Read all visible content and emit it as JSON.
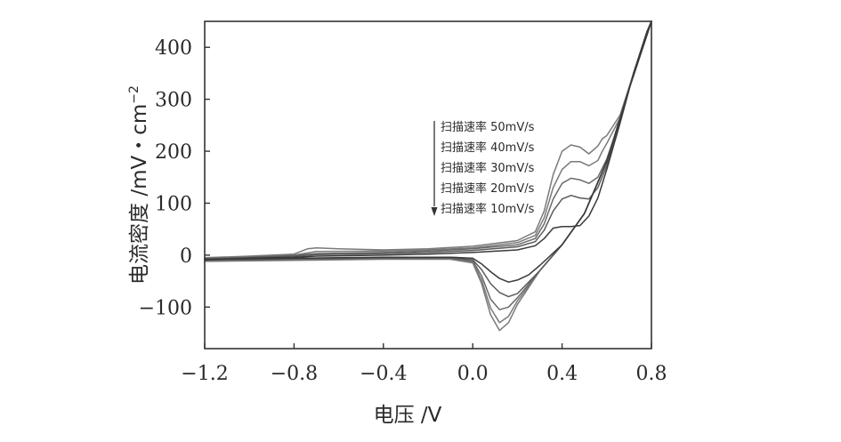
{
  "chart_data": {
    "type": "line",
    "title": "",
    "xlabel": "电压 /V",
    "ylabel": "电流密度 /mV・cm",
    "ylabel_sup": "−2",
    "xlim": [
      -1.2,
      0.8
    ],
    "ylim": [
      -180,
      450
    ],
    "grid": false,
    "x_ticks": [
      -1.2,
      -0.8,
      -0.4,
      0.0,
      0.4,
      0.8
    ],
    "x_tick_labels": [
      "−1.2",
      "−0.8",
      "−0.4",
      "0.0",
      "0.4",
      "0.8"
    ],
    "y_ticks": [
      -100,
      0,
      100,
      200,
      300,
      400
    ],
    "y_tick_labels": [
      "−100",
      "0",
      "100",
      "200",
      "300",
      "400"
    ],
    "legend": {
      "placement": "top-center",
      "arrow": "down",
      "entries": [
        "扫描速率 50mV/s",
        "扫描速率 40mV/s",
        "扫描速率 30mV/s",
        "扫描速率 20mV/s",
        "扫描速率 10mV/s"
      ]
    },
    "series": [
      {
        "name": "扫描速率 50mV/s",
        "color": "#7a7a7a",
        "forward": {
          "x": [
            -1.2,
            -1.0,
            -0.8,
            -0.74,
            -0.7,
            -0.6,
            -0.4,
            -0.2,
            0.0,
            0.2,
            0.28,
            0.32,
            0.36,
            0.4,
            0.44,
            0.48,
            0.52,
            0.56,
            0.58,
            0.6,
            0.66,
            0.72,
            0.78,
            0.8
          ],
          "y": [
            -5,
            -2,
            2,
            12,
            14,
            12,
            10,
            12,
            17,
            28,
            45,
            85,
            155,
            200,
            212,
            208,
            195,
            210,
            224,
            230,
            270,
            350,
            430,
            455
          ]
        },
        "reverse": {
          "x": [
            0.8,
            0.7,
            0.6,
            0.5,
            0.4,
            0.3,
            0.2,
            0.16,
            0.12,
            0.08,
            0.04,
            0.0,
            -0.1,
            -0.4,
            -0.8,
            -1.2
          ],
          "y": [
            455,
            320,
            180,
            80,
            20,
            -30,
            -95,
            -130,
            -145,
            -115,
            -55,
            -15,
            -8,
            -8,
            -10,
            -12
          ]
        }
      },
      {
        "name": "扫描速率 40mV/s",
        "color": "#7a7a7a",
        "forward": {
          "x": [
            -1.2,
            -1.0,
            -0.8,
            -0.7,
            -0.4,
            -0.2,
            0.0,
            0.2,
            0.28,
            0.32,
            0.36,
            0.4,
            0.44,
            0.48,
            0.52,
            0.56,
            0.58,
            0.6,
            0.66,
            0.72,
            0.78,
            0.8
          ],
          "y": [
            -6,
            -3,
            0,
            7,
            8,
            10,
            14,
            24,
            38,
            72,
            130,
            165,
            180,
            180,
            172,
            182,
            200,
            215,
            265,
            350,
            430,
            455
          ]
        },
        "reverse": {
          "x": [
            0.8,
            0.7,
            0.6,
            0.5,
            0.4,
            0.3,
            0.2,
            0.16,
            0.12,
            0.08,
            0.04,
            0.0,
            -0.1,
            -0.4,
            -0.8,
            -1.2
          ],
          "y": [
            455,
            320,
            180,
            80,
            20,
            -30,
            -88,
            -118,
            -130,
            -102,
            -48,
            -13,
            -7,
            -7,
            -9,
            -11
          ]
        }
      },
      {
        "name": "扫描速率 30mV/s",
        "color": "#6a6a6a",
        "forward": {
          "x": [
            -1.2,
            -1.0,
            -0.8,
            -0.7,
            -0.4,
            -0.2,
            0.0,
            0.2,
            0.28,
            0.32,
            0.36,
            0.4,
            0.44,
            0.48,
            0.52,
            0.56,
            0.6,
            0.66,
            0.72,
            0.78,
            0.8
          ],
          "y": [
            -7,
            -4,
            -1,
            3,
            5,
            8,
            12,
            20,
            32,
            60,
            108,
            138,
            148,
            145,
            138,
            150,
            185,
            260,
            350,
            430,
            455
          ]
        },
        "reverse": {
          "x": [
            0.8,
            0.7,
            0.6,
            0.5,
            0.4,
            0.3,
            0.2,
            0.16,
            0.12,
            0.08,
            0.04,
            0.0,
            -0.1,
            -0.4,
            -0.8,
            -1.2
          ],
          "y": [
            455,
            320,
            180,
            80,
            20,
            -30,
            -82,
            -100,
            -105,
            -85,
            -40,
            -11,
            -6,
            -6,
            -8,
            -10
          ]
        }
      },
      {
        "name": "扫描速率 20mV/s",
        "color": "#5a5a5a",
        "forward": {
          "x": [
            -1.2,
            -1.0,
            -0.8,
            -0.7,
            -0.4,
            -0.2,
            0.0,
            0.2,
            0.28,
            0.32,
            0.36,
            0.4,
            0.44,
            0.48,
            0.52,
            0.56,
            0.6,
            0.66,
            0.72,
            0.78,
            0.8
          ],
          "y": [
            -8,
            -5,
            -2,
            1,
            3,
            5,
            9,
            16,
            26,
            48,
            85,
            108,
            115,
            110,
            108,
            130,
            172,
            258,
            350,
            430,
            455
          ]
        },
        "reverse": {
          "x": [
            0.8,
            0.7,
            0.6,
            0.5,
            0.4,
            0.3,
            0.2,
            0.16,
            0.12,
            0.08,
            0.04,
            0.0,
            -0.1,
            -0.4,
            -0.8,
            -1.2
          ],
          "y": [
            455,
            320,
            180,
            80,
            20,
            -30,
            -74,
            -80,
            -72,
            -55,
            -28,
            -9,
            -5,
            -5,
            -7,
            -9
          ]
        }
      },
      {
        "name": "扫描速率 10mV/s",
        "color": "#3a3a3a",
        "forward": {
          "x": [
            -1.2,
            -1.0,
            -0.8,
            -0.7,
            -0.4,
            -0.2,
            0.0,
            0.2,
            0.28,
            0.32,
            0.36,
            0.4,
            0.44,
            0.48,
            0.52,
            0.56,
            0.6,
            0.66,
            0.72,
            0.78,
            0.8
          ],
          "y": [
            -9,
            -6,
            -4,
            -2,
            0,
            2,
            5,
            10,
            18,
            32,
            52,
            55,
            55,
            57,
            75,
            110,
            165,
            255,
            350,
            430,
            455
          ]
        },
        "reverse": {
          "x": [
            0.8,
            0.7,
            0.6,
            0.5,
            0.4,
            0.3,
            0.25,
            0.2,
            0.16,
            0.12,
            0.08,
            0.04,
            0.0,
            -0.1,
            -0.4,
            -0.8,
            -1.2
          ],
          "y": [
            455,
            320,
            180,
            80,
            20,
            -20,
            -38,
            -48,
            -52,
            -45,
            -32,
            -17,
            -6,
            -4,
            -4,
            -6,
            -8
          ]
        }
      }
    ]
  }
}
